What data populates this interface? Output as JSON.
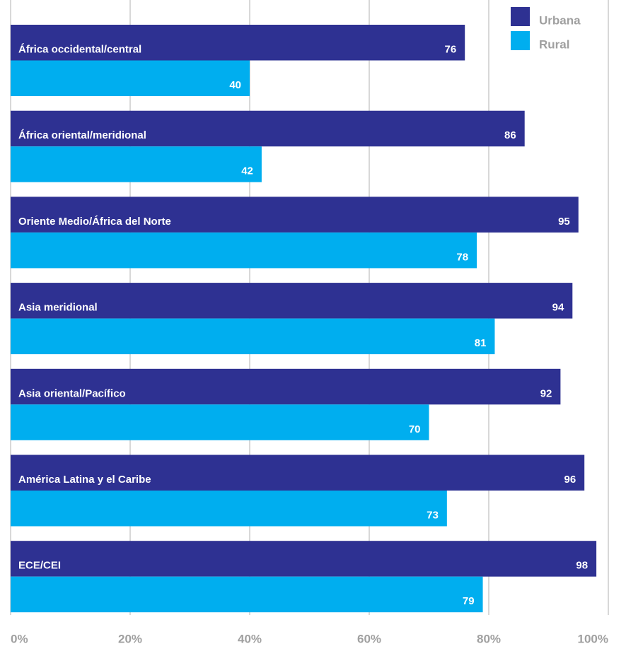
{
  "chart_data": {
    "type": "barh",
    "categories": [
      "África occidental/central",
      "África oriental/meridional",
      "Oriente Medio/África del Norte",
      "Asia meridional",
      "Asia oriental/Pacífico",
      "América Latina y el Caribe",
      "ECE/CEI"
    ],
    "series": [
      {
        "name": "Urbana",
        "color": "#2e3192",
        "values": [
          76,
          86,
          95,
          94,
          92,
          96,
          98
        ]
      },
      {
        "name": "Rural",
        "color": "#00aeef",
        "values": [
          40,
          42,
          78,
          81,
          70,
          73,
          79
        ]
      }
    ],
    "xlim": [
      0,
      100
    ],
    "xticks": [
      {
        "value": 0,
        "label": "0%"
      },
      {
        "value": 20,
        "label": "20%"
      },
      {
        "value": 40,
        "label": "40%"
      },
      {
        "value": 60,
        "label": "60%"
      },
      {
        "value": 80,
        "label": "80%"
      },
      {
        "value": 100,
        "label": "100%"
      }
    ],
    "grid": true,
    "legend": "top-right"
  }
}
